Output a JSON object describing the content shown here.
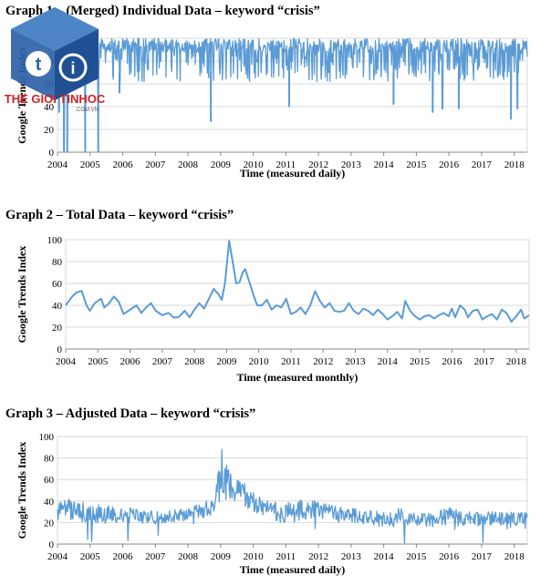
{
  "chart_data": [
    {
      "type": "line",
      "title": "Graph  1 – (Merged) Individual  Data – keyword  “crisis”",
      "xlabel": "Time (measured daily)",
      "ylabel": "Google Trends Index",
      "xlim": [
        2004,
        2018.4
      ],
      "ylim": [
        0,
        100
      ],
      "x_ticks": [
        "2004",
        "2005",
        "2006",
        "2007",
        "2008",
        "2009",
        "2010",
        "2011",
        "2012",
        "2013",
        "2014",
        "2015",
        "2016",
        "2017",
        "2018"
      ],
      "y_ticks": [
        0,
        20,
        40,
        60,
        80,
        100
      ],
      "grid": true,
      "series": [
        {
          "resolution": "daily",
          "band_upper": 100,
          "band_lower_typical": 62,
          "dips": [
            {
              "x": 2004.05,
              "y": 35
            },
            {
              "x": 2004.2,
              "y": 0
            },
            {
              "x": 2004.3,
              "y": 0
            },
            {
              "x": 2004.85,
              "y": 0
            },
            {
              "x": 2005.25,
              "y": 0
            },
            {
              "x": 2005.9,
              "y": 52
            },
            {
              "x": 2008.7,
              "y": 27
            },
            {
              "x": 2011.1,
              "y": 40
            },
            {
              "x": 2014.3,
              "y": 42
            },
            {
              "x": 2015.5,
              "y": 35
            },
            {
              "x": 2015.8,
              "y": 38
            },
            {
              "x": 2016.3,
              "y": 38
            },
            {
              "x": 2017.9,
              "y": 29
            },
            {
              "x": 2018.1,
              "y": 38
            }
          ]
        }
      ]
    },
    {
      "type": "line",
      "title": "Graph  2 – Total Data – keyword “crisis”",
      "xlabel": "Time (measured monthly)",
      "ylabel": "Google Trends Index",
      "xlim": [
        2004,
        2018.4
      ],
      "ylim": [
        0,
        100
      ],
      "x_ticks": [
        "2004",
        "2005",
        "2006",
        "2007",
        "2008",
        "2009",
        "2010",
        "2011",
        "2012",
        "2013",
        "2014",
        "2015",
        "2016",
        "2017",
        "2018"
      ],
      "y_ticks": [
        0,
        20,
        40,
        60,
        80,
        100
      ],
      "grid": true,
      "series": [
        {
          "resolution": "monthly",
          "points": [
            [
              2004.0,
              40
            ],
            [
              2004.2,
              48
            ],
            [
              2004.35,
              52
            ],
            [
              2004.5,
              53
            ],
            [
              2004.65,
              40
            ],
            [
              2004.75,
              35
            ],
            [
              2004.9,
              42
            ],
            [
              2005.1,
              46
            ],
            [
              2005.2,
              38
            ],
            [
              2005.35,
              42
            ],
            [
              2005.5,
              48
            ],
            [
              2005.65,
              43
            ],
            [
              2005.8,
              32
            ],
            [
              2006.0,
              36
            ],
            [
              2006.2,
              40
            ],
            [
              2006.35,
              33
            ],
            [
              2006.5,
              38
            ],
            [
              2006.65,
              42
            ],
            [
              2006.8,
              35
            ],
            [
              2007.0,
              31
            ],
            [
              2007.2,
              33
            ],
            [
              2007.35,
              29
            ],
            [
              2007.5,
              29
            ],
            [
              2007.7,
              35
            ],
            [
              2007.85,
              29
            ],
            [
              2008.0,
              36
            ],
            [
              2008.15,
              42
            ],
            [
              2008.3,
              37
            ],
            [
              2008.45,
              46
            ],
            [
              2008.6,
              55
            ],
            [
              2008.75,
              50
            ],
            [
              2008.85,
              45
            ],
            [
              2008.95,
              60
            ],
            [
              2009.0,
              75
            ],
            [
              2009.08,
              99
            ],
            [
              2009.2,
              78
            ],
            [
              2009.3,
              60
            ],
            [
              2009.4,
              61
            ],
            [
              2009.5,
              70
            ],
            [
              2009.58,
              73
            ],
            [
              2009.7,
              62
            ],
            [
              2009.85,
              48
            ],
            [
              2009.95,
              40
            ],
            [
              2010.1,
              40
            ],
            [
              2010.25,
              45
            ],
            [
              2010.4,
              36
            ],
            [
              2010.55,
              40
            ],
            [
              2010.7,
              38
            ],
            [
              2010.85,
              46
            ],
            [
              2011.0,
              32
            ],
            [
              2011.15,
              34
            ],
            [
              2011.3,
              38
            ],
            [
              2011.45,
              32
            ],
            [
              2011.6,
              40
            ],
            [
              2011.75,
              53
            ],
            [
              2011.9,
              44
            ],
            [
              2012.05,
              38
            ],
            [
              2012.2,
              42
            ],
            [
              2012.35,
              35
            ],
            [
              2012.5,
              34
            ],
            [
              2012.65,
              35
            ],
            [
              2012.8,
              42
            ],
            [
              2012.95,
              35
            ],
            [
              2013.1,
              32
            ],
            [
              2013.25,
              37
            ],
            [
              2013.4,
              35
            ],
            [
              2013.55,
              31
            ],
            [
              2013.7,
              36
            ],
            [
              2013.85,
              32
            ],
            [
              2014.0,
              27
            ],
            [
              2014.15,
              30
            ],
            [
              2014.3,
              34
            ],
            [
              2014.45,
              28
            ],
            [
              2014.55,
              44
            ],
            [
              2014.7,
              35
            ],
            [
              2014.85,
              30
            ],
            [
              2015.0,
              27
            ],
            [
              2015.15,
              30
            ],
            [
              2015.3,
              31
            ],
            [
              2015.45,
              28
            ],
            [
              2015.6,
              31
            ],
            [
              2015.75,
              33
            ],
            [
              2015.9,
              30
            ],
            [
              2016.0,
              37
            ],
            [
              2016.1,
              29
            ],
            [
              2016.25,
              40
            ],
            [
              2016.4,
              36
            ],
            [
              2016.5,
              29
            ],
            [
              2016.65,
              35
            ],
            [
              2016.8,
              36
            ],
            [
              2016.95,
              27
            ],
            [
              2017.1,
              30
            ],
            [
              2017.25,
              32
            ],
            [
              2017.4,
              27
            ],
            [
              2017.55,
              36
            ],
            [
              2017.7,
              33
            ],
            [
              2017.85,
              25
            ],
            [
              2018.0,
              30
            ],
            [
              2018.15,
              36
            ],
            [
              2018.25,
              28
            ],
            [
              2018.4,
              31
            ]
          ]
        }
      ]
    },
    {
      "type": "line",
      "title": "Graph  3 – Adjusted  Data – keyword  “crisis”",
      "xlabel": "Time (measured daily)",
      "ylabel": "Google Trends Index",
      "xlim": [
        2004,
        2018.4
      ],
      "ylim": [
        0,
        100
      ],
      "x_ticks": [
        "2004",
        "2005",
        "2006",
        "2007",
        "2008",
        "2009",
        "2010",
        "2011",
        "2012",
        "2013",
        "2014",
        "2015",
        "2016",
        "2017",
        "2018"
      ],
      "y_ticks": [
        0,
        20,
        40,
        60,
        80,
        100
      ],
      "grid": true,
      "series": [
        {
          "resolution": "daily",
          "envelope": [
            [
              2004.0,
              38,
              30
            ],
            [
              2004.3,
              44,
              20
            ],
            [
              2004.6,
              40,
              22
            ],
            [
              2005.0,
              38,
              18
            ],
            [
              2005.5,
              36,
              20
            ],
            [
              2006.0,
              34,
              20
            ],
            [
              2006.5,
              34,
              18
            ],
            [
              2007.0,
              30,
              18
            ],
            [
              2007.5,
              32,
              20
            ],
            [
              2008.0,
              34,
              22
            ],
            [
              2008.5,
              40,
              24
            ],
            [
              2008.8,
              40,
              28
            ],
            [
              2009.05,
              100,
              45
            ],
            [
              2009.2,
              70,
              40
            ],
            [
              2009.5,
              65,
              40
            ],
            [
              2010.0,
              48,
              28
            ],
            [
              2010.5,
              40,
              24
            ],
            [
              2011.0,
              38,
              18
            ],
            [
              2011.5,
              42,
              22
            ],
            [
              2012.0,
              40,
              24
            ],
            [
              2012.5,
              36,
              22
            ],
            [
              2013.0,
              34,
              20
            ],
            [
              2013.5,
              32,
              18
            ],
            [
              2014.0,
              30,
              16
            ],
            [
              2014.5,
              34,
              18
            ],
            [
              2015.0,
              28,
              16
            ],
            [
              2015.5,
              30,
              16
            ],
            [
              2016.0,
              34,
              18
            ],
            [
              2016.5,
              30,
              16
            ],
            [
              2017.0,
              30,
              16
            ],
            [
              2017.5,
              30,
              16
            ],
            [
              2018.0,
              30,
              14
            ],
            [
              2018.4,
              30,
              14
            ]
          ]
        }
      ]
    }
  ],
  "colors": {
    "series": "#5b9bd5",
    "grid": "#d9d9d9"
  },
  "watermark": {
    "brand": "THE GIOI TINHOC",
    "domain": ".COM.VN"
  }
}
